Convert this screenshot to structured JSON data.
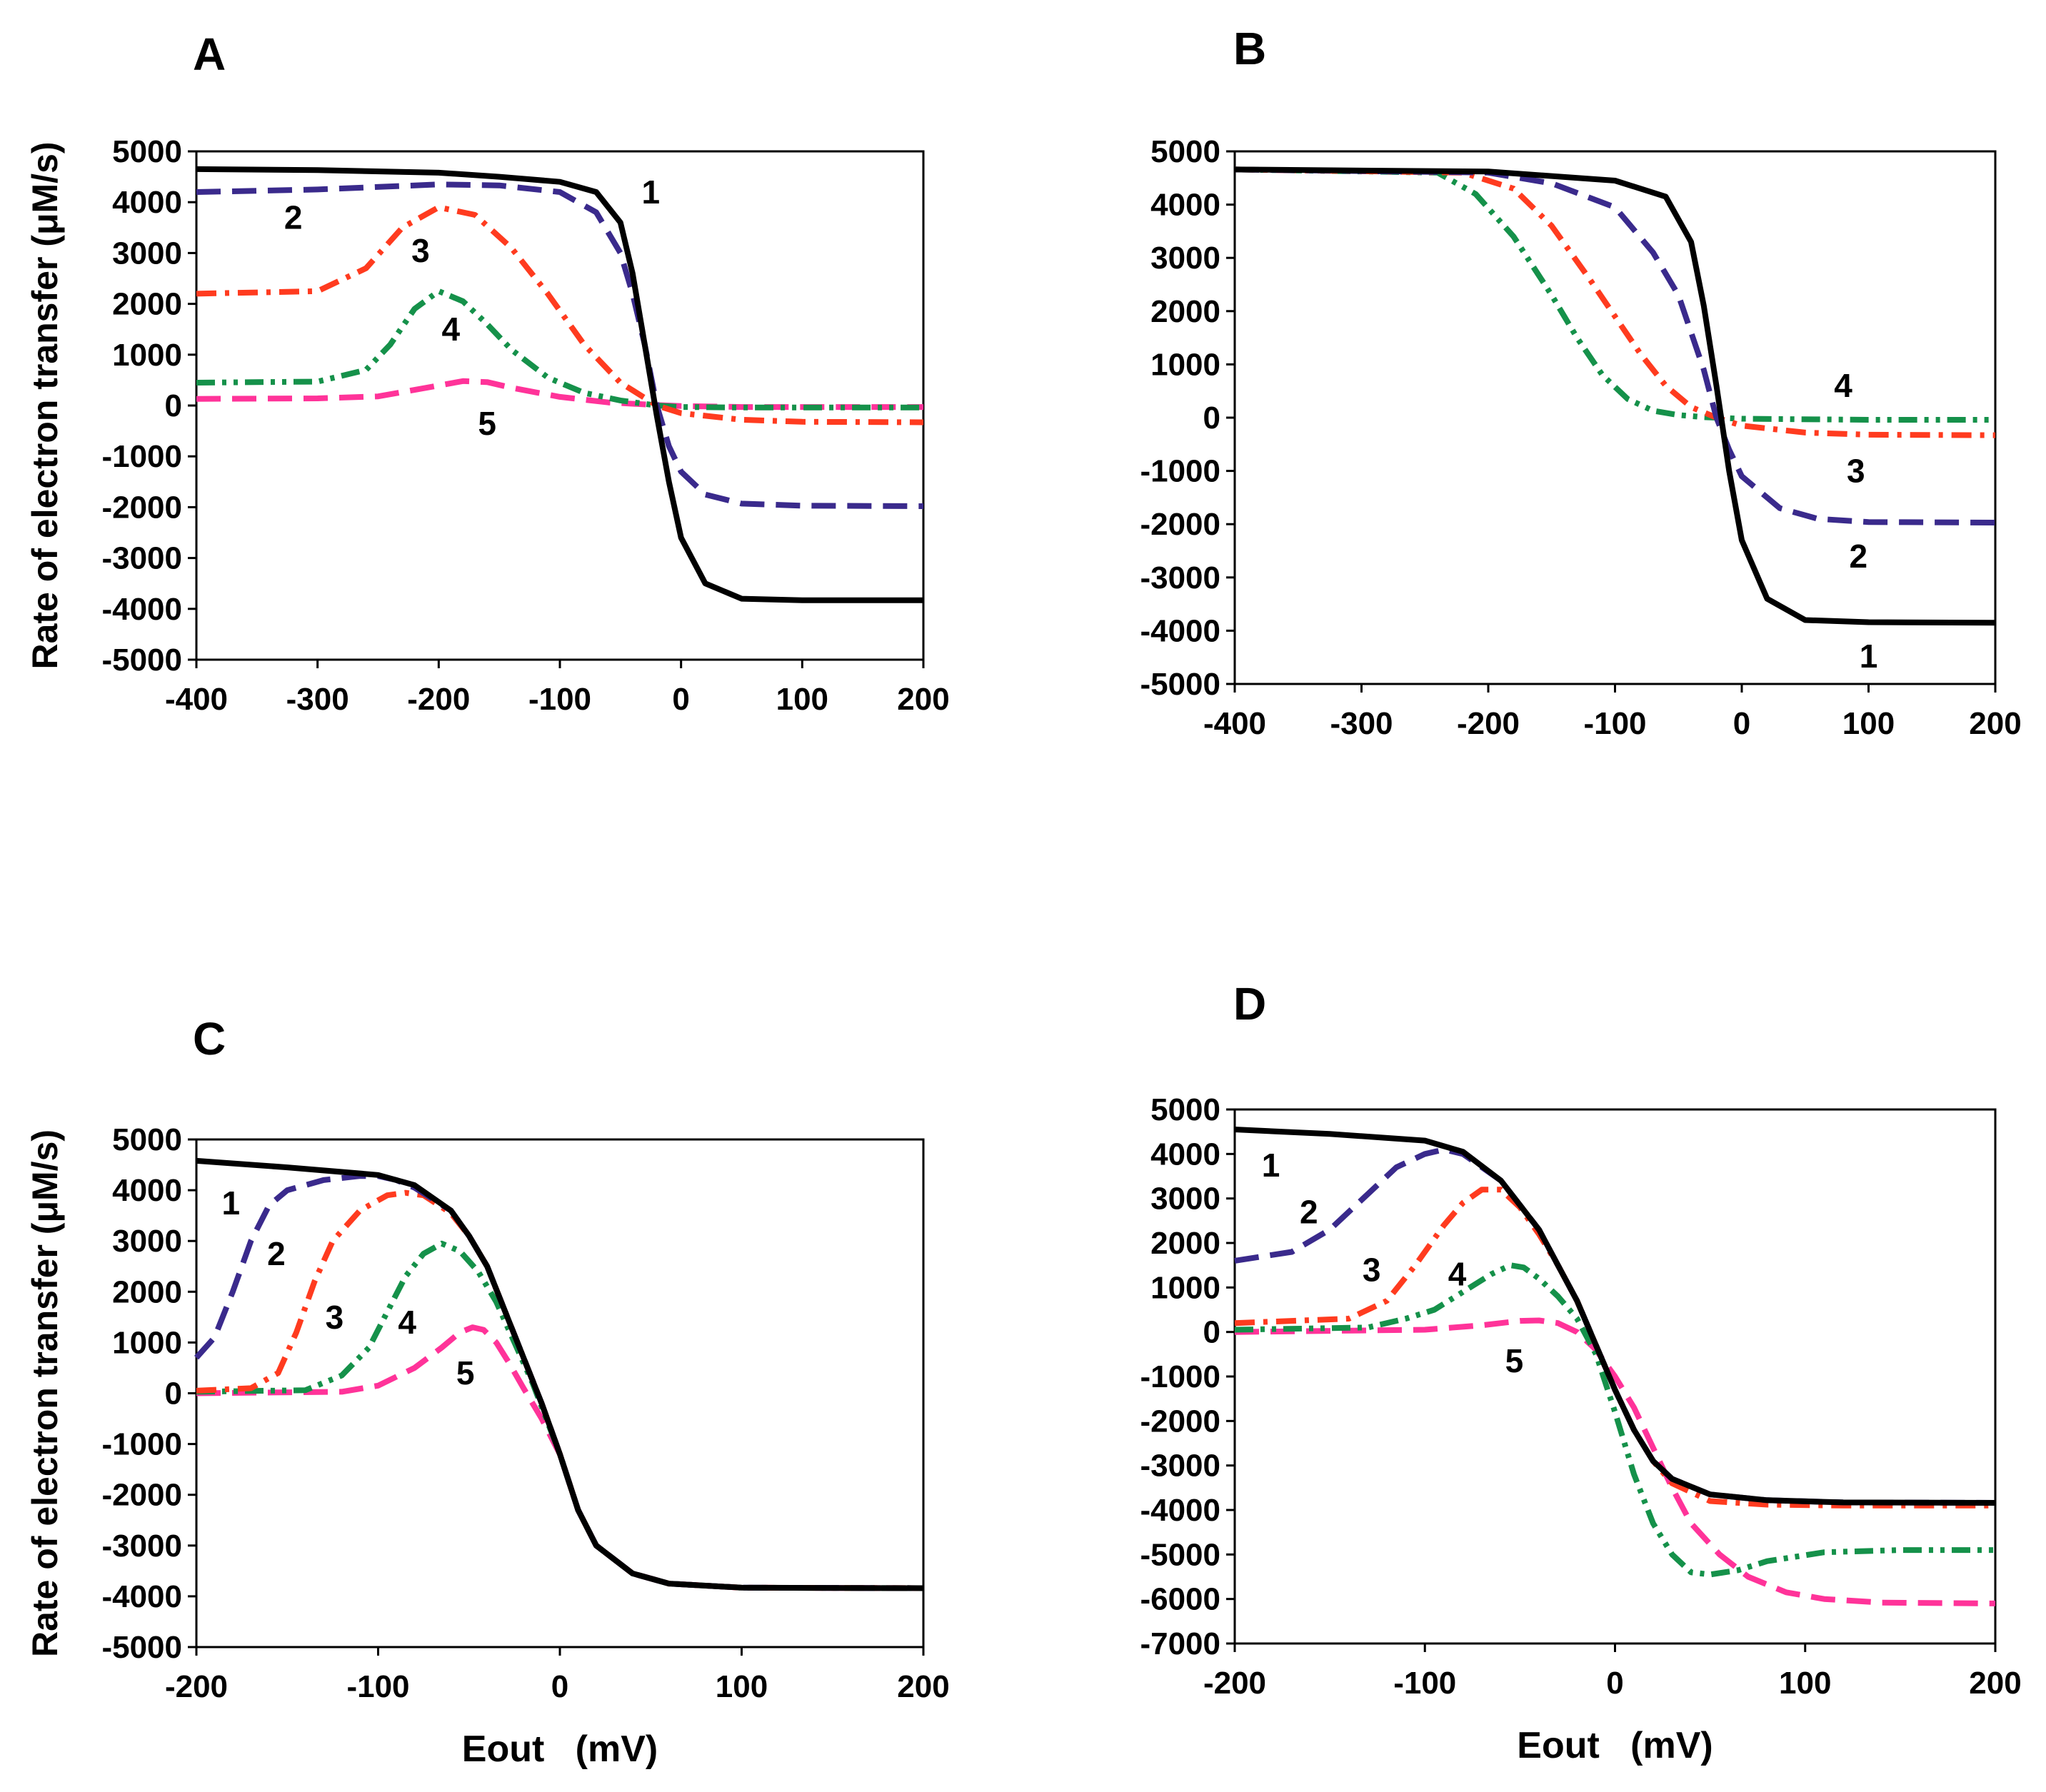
{
  "chart_data": [
    {
      "panel": "A",
      "type": "line",
      "title": "A",
      "xlabel": "",
      "ylabel": "Rate of electron transfer (μM/s)",
      "xlim": [
        -400,
        200
      ],
      "ylim": [
        -5000,
        5000
      ],
      "xticks": [
        "-400",
        "-300",
        "-200",
        "-100",
        "0",
        "100",
        "200"
      ],
      "yticks": [
        "5000",
        "4000",
        "3000",
        "2000",
        "1000",
        "0",
        "-1000",
        "-2000",
        "-3000",
        "-4000",
        "-5000"
      ],
      "series": [
        {
          "name": "1",
          "label": "1",
          "color": "#000000",
          "style": "solid",
          "x": [
            -400,
            -300,
            -200,
            -150,
            -100,
            -70,
            -50,
            -40,
            -30,
            -20,
            -10,
            0,
            20,
            50,
            100,
            200
          ],
          "y": [
            4650,
            4630,
            4580,
            4500,
            4400,
            4200,
            3600,
            2600,
            1200,
            -200,
            -1500,
            -2600,
            -3500,
            -3800,
            -3830,
            -3830
          ]
        },
        {
          "name": "2",
          "label": "2",
          "color": "#3A2A8C",
          "style": "dash",
          "x": [
            -400,
            -300,
            -200,
            -150,
            -100,
            -70,
            -50,
            -40,
            -30,
            -20,
            -10,
            0,
            20,
            50,
            100,
            200
          ],
          "y": [
            4200,
            4250,
            4350,
            4330,
            4200,
            3800,
            3000,
            2200,
            1200,
            0,
            -800,
            -1300,
            -1750,
            -1930,
            -1970,
            -1980
          ]
        },
        {
          "name": "3",
          "label": "3",
          "color": "#FF3B1F",
          "style": "dashdot",
          "x": [
            -400,
            -300,
            -260,
            -230,
            -200,
            -170,
            -140,
            -110,
            -80,
            -50,
            -30,
            -20,
            0,
            50,
            100,
            200
          ],
          "y": [
            2200,
            2250,
            2700,
            3500,
            3900,
            3750,
            3100,
            2200,
            1200,
            450,
            150,
            0,
            -150,
            -280,
            -320,
            -330
          ]
        },
        {
          "name": "4",
          "label": "4",
          "color": "#15914A",
          "style": "dashdotdot",
          "x": [
            -400,
            -300,
            -260,
            -240,
            -220,
            -200,
            -180,
            -160,
            -140,
            -110,
            -80,
            -50,
            -20,
            0,
            50,
            200
          ],
          "y": [
            450,
            470,
            700,
            1200,
            1900,
            2250,
            2050,
            1600,
            1100,
            550,
            250,
            100,
            0,
            -30,
            -40,
            -40
          ]
        },
        {
          "name": "5",
          "label": "5",
          "color": "#FF3399",
          "style": "dash",
          "x": [
            -400,
            -300,
            -250,
            -210,
            -180,
            -160,
            -140,
            -100,
            -60,
            -20,
            0,
            50,
            200
          ],
          "y": [
            130,
            140,
            180,
            350,
            480,
            460,
            350,
            170,
            60,
            10,
            -10,
            -30,
            -30
          ]
        }
      ]
    },
    {
      "panel": "B",
      "type": "line",
      "title": "B",
      "xlabel": "",
      "ylabel": "",
      "xlim": [
        -400,
        200
      ],
      "ylim": [
        -5000,
        5000
      ],
      "xticks": [
        "-400",
        "-300",
        "-200",
        "-100",
        "0",
        "100",
        "200"
      ],
      "yticks": [
        "5000",
        "4000",
        "3000",
        "2000",
        "1000",
        "0",
        "-1000",
        "-2000",
        "-3000",
        "-4000",
        "-5000"
      ],
      "series": [
        {
          "name": "1",
          "label": "1",
          "color": "#000000",
          "style": "solid",
          "x": [
            -400,
            -200,
            -100,
            -60,
            -40,
            -30,
            -20,
            -10,
            0,
            20,
            50,
            100,
            200
          ],
          "y": [
            4660,
            4620,
            4450,
            4150,
            3300,
            2100,
            600,
            -1000,
            -2300,
            -3400,
            -3800,
            -3840,
            -3850
          ]
        },
        {
          "name": "2",
          "label": "2",
          "color": "#3A2A8C",
          "style": "dash",
          "x": [
            -400,
            -200,
            -150,
            -100,
            -70,
            -50,
            -30,
            -20,
            -10,
            0,
            30,
            60,
            100,
            200
          ],
          "y": [
            4660,
            4600,
            4400,
            3950,
            3100,
            2300,
            900,
            0,
            -600,
            -1100,
            -1700,
            -1900,
            -1960,
            -1970
          ]
        },
        {
          "name": "3",
          "label": "3",
          "color": "#FF3B1F",
          "style": "dashdot",
          "x": [
            -400,
            -220,
            -180,
            -150,
            -120,
            -100,
            -80,
            -60,
            -40,
            -20,
            0,
            50,
            100,
            200
          ],
          "y": [
            4660,
            4600,
            4300,
            3600,
            2600,
            1900,
            1200,
            600,
            200,
            0,
            -150,
            -280,
            -320,
            -330
          ]
        },
        {
          "name": "4",
          "label": "4",
          "color": "#15914A",
          "style": "dashdotdot",
          "x": [
            -400,
            -240,
            -210,
            -180,
            -150,
            -130,
            -110,
            -90,
            -70,
            -50,
            -30,
            0,
            100,
            200
          ],
          "y": [
            4660,
            4600,
            4200,
            3400,
            2300,
            1500,
            800,
            350,
            130,
            50,
            10,
            -20,
            -40,
            -40
          ]
        }
      ]
    },
    {
      "panel": "C",
      "type": "line",
      "title": "C",
      "xlabel": "Eout   (mV)",
      "ylabel": "Rate of electron transfer (μM/s)",
      "xlim": [
        -200,
        200
      ],
      "ylim": [
        -5000,
        5000
      ],
      "xticks": [
        "-200",
        "-100",
        "0",
        "100",
        "200"
      ],
      "yticks": [
        "5000",
        "4000",
        "3000",
        "2000",
        "1000",
        "0",
        "-1000",
        "-2000",
        "-3000",
        "-4000",
        "-5000"
      ],
      "series": [
        {
          "name": "1",
          "label": "1",
          "color": "#000000",
          "style": "solid",
          "x": [
            -200,
            -150,
            -100,
            -80,
            -60,
            -50,
            -40,
            -30,
            -20,
            -10,
            0,
            10,
            20,
            40,
            60,
            100,
            200
          ],
          "y": [
            4580,
            4450,
            4300,
            4100,
            3600,
            3100,
            2500,
            1600,
            700,
            -200,
            -1200,
            -2300,
            -3000,
            -3550,
            -3750,
            -3830,
            -3840
          ]
        },
        {
          "name": "2",
          "label": "2",
          "color": "#3A2A8C",
          "style": "dash",
          "x": [
            -200,
            -190,
            -180,
            -170,
            -160,
            -150,
            -130,
            -110,
            -100,
            -90,
            -80,
            -60,
            -50,
            -40,
            -30,
            -20,
            -10,
            0,
            10,
            20,
            40,
            60,
            100,
            200
          ],
          "y": [
            700,
            1100,
            2000,
            3000,
            3700,
            4000,
            4200,
            4280,
            4280,
            4200,
            4050,
            3600,
            3100,
            2500,
            1600,
            700,
            -200,
            -1200,
            -2300,
            -3000,
            -3550,
            -3750,
            -3830,
            -3840
          ]
        },
        {
          "name": "3",
          "label": "3",
          "color": "#FF3B1F",
          "style": "dashdot",
          "x": [
            -200,
            -170,
            -155,
            -145,
            -135,
            -125,
            -110,
            -95,
            -85,
            -75,
            -60,
            -50,
            -40,
            -30,
            -20,
            -10,
            0,
            10,
            20,
            40,
            60,
            100,
            200
          ],
          "y": [
            50,
            100,
            400,
            1200,
            2200,
            3000,
            3600,
            3900,
            3950,
            3900,
            3550,
            3100,
            2500,
            1600,
            700,
            -200,
            -1200,
            -2300,
            -3000,
            -3550,
            -3750,
            -3830,
            -3840
          ]
        },
        {
          "name": "4",
          "label": "4",
          "color": "#15914A",
          "style": "dashdotdot",
          "x": [
            -200,
            -140,
            -120,
            -105,
            -95,
            -85,
            -75,
            -65,
            -55,
            -45,
            -35,
            -25,
            -15,
            0,
            10,
            20,
            40,
            60,
            100,
            200
          ],
          "y": [
            30,
            60,
            350,
            900,
            1600,
            2300,
            2750,
            2950,
            2800,
            2400,
            1800,
            1000,
            200,
            -1200,
            -2300,
            -3000,
            -3550,
            -3750,
            -3830,
            -3840
          ]
        },
        {
          "name": "5",
          "label": "5",
          "color": "#FF3399",
          "style": "dash",
          "x": [
            -200,
            -120,
            -100,
            -80,
            -65,
            -55,
            -48,
            -42,
            -35,
            -28,
            -20,
            -10,
            0,
            10,
            20,
            40,
            60,
            100,
            200
          ],
          "y": [
            0,
            30,
            150,
            500,
            900,
            1200,
            1300,
            1250,
            1000,
            600,
            100,
            -500,
            -1200,
            -2300,
            -3000,
            -3550,
            -3750,
            -3830,
            -3840
          ]
        }
      ]
    },
    {
      "panel": "D",
      "type": "line",
      "title": "D",
      "xlabel": "Eout   (mV)",
      "ylabel": "",
      "xlim": [
        -200,
        200
      ],
      "ylim": [
        -7000,
        5000
      ],
      "xticks": [
        "-200",
        "-100",
        "0",
        "100",
        "200"
      ],
      "yticks": [
        "5000",
        "4000",
        "3000",
        "2000",
        "1000",
        "0",
        "-1000",
        "-2000",
        "-3000",
        "-4000",
        "-5000",
        "-6000",
        "-7000"
      ],
      "series": [
        {
          "name": "1",
          "label": "1",
          "color": "#000000",
          "style": "solid",
          "x": [
            -200,
            -150,
            -100,
            -80,
            -60,
            -40,
            -30,
            -20,
            -10,
            0,
            10,
            20,
            30,
            50,
            80,
            120,
            200
          ],
          "y": [
            4550,
            4450,
            4300,
            4050,
            3400,
            2300,
            1500,
            700,
            -300,
            -1300,
            -2200,
            -2900,
            -3300,
            -3650,
            -3780,
            -3830,
            -3840
          ]
        },
        {
          "name": "2",
          "label": "2",
          "color": "#3A2A8C",
          "style": "dash",
          "x": [
            -200,
            -170,
            -150,
            -130,
            -115,
            -100,
            -90,
            -80,
            -60,
            -40,
            -30,
            -20,
            -10,
            0,
            10,
            20,
            30,
            50,
            80,
            120,
            200
          ],
          "y": [
            1600,
            1800,
            2300,
            3100,
            3700,
            4000,
            4100,
            4000,
            3400,
            2300,
            1500,
            700,
            -300,
            -1300,
            -2200,
            -2900,
            -3300,
            -3650,
            -3780,
            -3830,
            -3840
          ]
        },
        {
          "name": "3",
          "label": "3",
          "color": "#FF3B1F",
          "style": "dashdot",
          "x": [
            -200,
            -140,
            -120,
            -105,
            -90,
            -80,
            -70,
            -60,
            -50,
            -40,
            -30,
            -20,
            -10,
            0,
            10,
            20,
            30,
            50,
            80,
            120,
            200
          ],
          "y": [
            200,
            300,
            700,
            1500,
            2400,
            2900,
            3200,
            3200,
            2800,
            2200,
            1500,
            700,
            -300,
            -1300,
            -2200,
            -2900,
            -3400,
            -3800,
            -3880,
            -3900,
            -3900
          ]
        },
        {
          "name": "4",
          "label": "4",
          "color": "#15914A",
          "style": "dashdotdot",
          "x": [
            -200,
            -130,
            -110,
            -95,
            -80,
            -65,
            -55,
            -48,
            -40,
            -30,
            -20,
            -10,
            0,
            10,
            20,
            30,
            40,
            50,
            65,
            80,
            110,
            150,
            200
          ],
          "y": [
            50,
            100,
            300,
            500,
            900,
            1300,
            1500,
            1450,
            1200,
            800,
            300,
            -500,
            -1800,
            -3200,
            -4300,
            -5000,
            -5400,
            -5450,
            -5350,
            -5150,
            -4950,
            -4900,
            -4900
          ]
        },
        {
          "name": "5",
          "label": "5",
          "color": "#FF3399",
          "style": "dash",
          "x": [
            -200,
            -100,
            -70,
            -50,
            -40,
            -30,
            -20,
            -10,
            0,
            10,
            20,
            30,
            40,
            55,
            70,
            90,
            110,
            140,
            200
          ],
          "y": [
            0,
            50,
            150,
            250,
            260,
            200,
            0,
            -400,
            -1000,
            -1700,
            -2600,
            -3500,
            -4300,
            -5000,
            -5500,
            -5850,
            -6000,
            -6080,
            -6100
          ]
        }
      ]
    }
  ]
}
